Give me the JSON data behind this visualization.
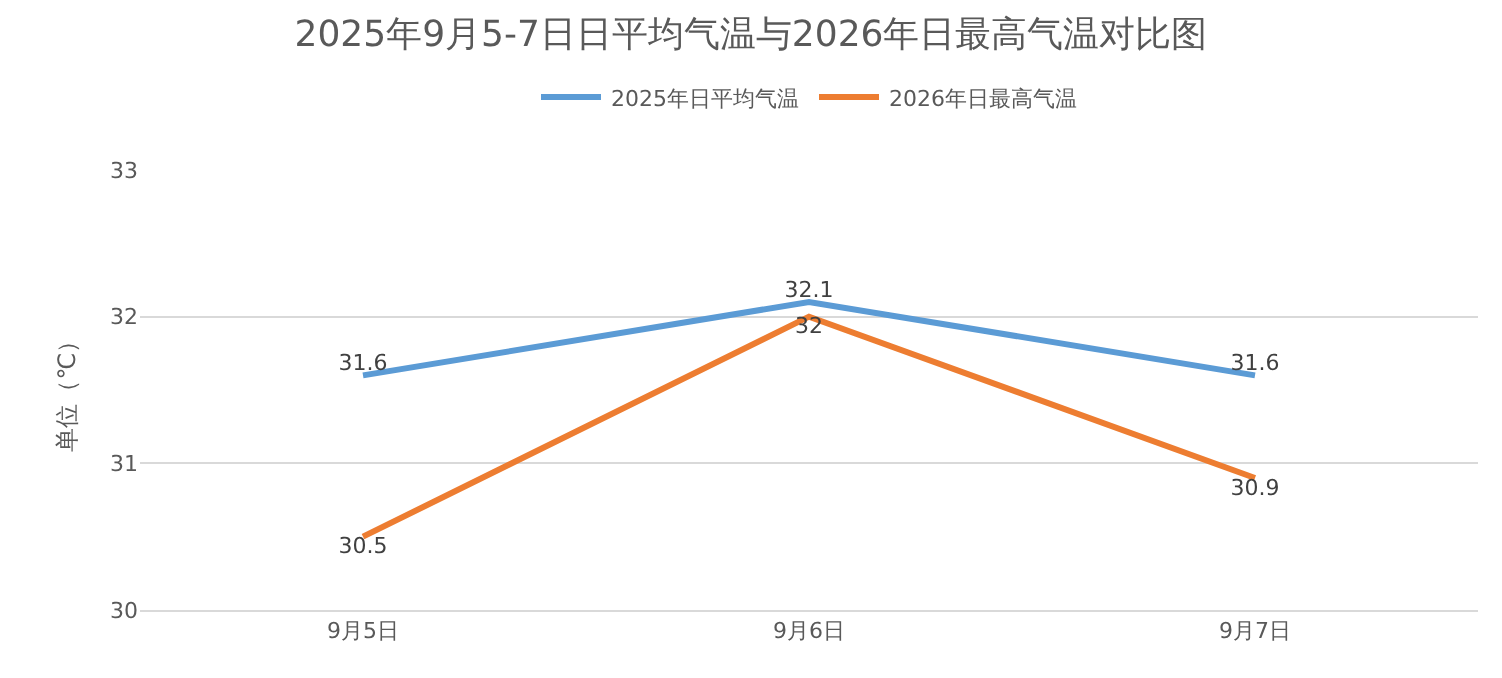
{
  "chart_data": {
    "type": "line",
    "title": "2025年9月5-7日日平均气温与2026年日最高气温对比图",
    "ylabel": "单位（℃）",
    "categories": [
      "9月5日",
      "9月6日",
      "9月7日"
    ],
    "series": [
      {
        "name": "2025年日平均气温",
        "color": "#5b9bd5",
        "values": [
          31.6,
          32.1,
          31.6
        ]
      },
      {
        "name": "2026年日最高气温",
        "color": "#ed7d31",
        "values": [
          30.5,
          32,
          30.9
        ]
      }
    ],
    "ylim": [
      30,
      33
    ],
    "yticks": [
      30,
      31,
      32,
      33
    ],
    "grid": "y",
    "legend": "top",
    "data_labels": true,
    "marker": "none",
    "line_style": "solid"
  }
}
